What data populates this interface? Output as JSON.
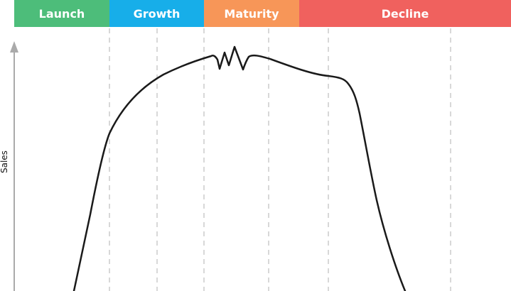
{
  "stages": [
    {
      "label": "Launch",
      "color": "#4dbd7a"
    },
    {
      "label": "Growth",
      "color": "#17aee9"
    },
    {
      "label": "Maturity",
      "color": "#f79658"
    },
    {
      "label": "Decline",
      "color": "#f0615e"
    }
  ],
  "y_axis": {
    "label": "Sales"
  },
  "colors": {
    "axis": "#aaaaaa",
    "divider": "#cccccc",
    "curve": "#1a1a1a"
  }
}
